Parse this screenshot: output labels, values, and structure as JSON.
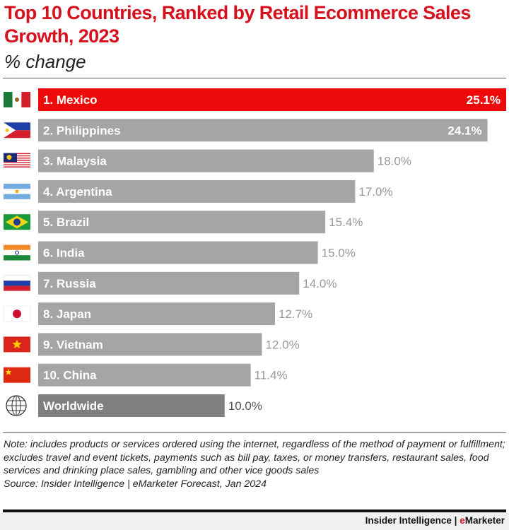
{
  "chart_data": {
    "type": "bar",
    "orientation": "horizontal",
    "title": "Top 10 Countries, Ranked by Retail  Ecommerce Sales Growth, 2023",
    "subtitle": "% change",
    "categories": [
      "1. Mexico",
      "2. Philippines",
      "3. Malaysia",
      "4. Argentina",
      "5. Brazil",
      "6. India",
      "7. Russia",
      "8. Japan",
      "9. Vietnam",
      "10. China",
      "Worldwide"
    ],
    "values": [
      25.1,
      24.1,
      18.0,
      17.0,
      15.4,
      15.0,
      14.0,
      12.7,
      12.0,
      11.4,
      10.0
    ],
    "value_labels": [
      "25.1%",
      "24.1%",
      "18.0%",
      "17.0%",
      "15.4%",
      "15.0%",
      "14.0%",
      "12.7%",
      "12.0%",
      "11.4%",
      "10.0%"
    ],
    "flags": [
      "mexico-flag",
      "philippines-flag",
      "malaysia-flag",
      "argentina-flag",
      "brazil-flag",
      "india-flag",
      "russia-flag",
      "japan-flag",
      "vietnam-flag",
      "china-flag",
      "globe-icon"
    ],
    "colors": {
      "highlight": "#ee0a0a",
      "bar": "#a5a5a5",
      "worldwide": "#7f7f7f",
      "title": "#d7101e"
    },
    "xlim": [
      0,
      25.1
    ],
    "grid": false
  },
  "note": "Note: includes products or services ordered using the internet, regardless of the method of payment or fulfillment; excludes travel and event tickets, payments such as bill pay, taxes, or money transfers, restaurant  sales, food services and drinking place sales, gambling and other vice goods sales",
  "source": "Source: Insider Intelligence  | eMarketer Forecast, Jan 2024",
  "brand": {
    "left": "Insider Intelligence | ",
    "e": "e",
    "right": "Marketer"
  }
}
